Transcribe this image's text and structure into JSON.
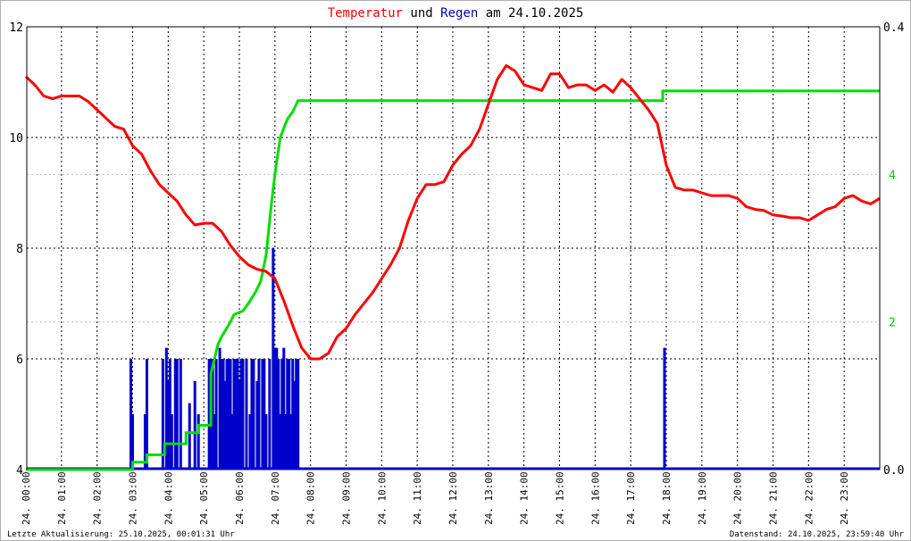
{
  "title": {
    "part1": "Temperatur",
    "part2": " und ",
    "part3": "Regen",
    "part4": " am 24.10.2025",
    "color1": "#ff0000",
    "color2": "#000000",
    "color3": "#0000aa"
  },
  "footer": {
    "left": "Letzte Aktualisierung: 25.10.2025, 00:01:31 Uhr",
    "right": "Datenstand: 24.10.2025, 23:59:40 Uhr"
  },
  "chart_data": {
    "type": "line",
    "x_unit": "hour of day",
    "xlim": [
      0,
      24
    ],
    "x_ticks": [
      0,
      1,
      2,
      3,
      4,
      5,
      6,
      7,
      8,
      9,
      10,
      11,
      12,
      13,
      14,
      15,
      16,
      17,
      18,
      19,
      20,
      21,
      22,
      23
    ],
    "x_tick_labels": [
      "24. 00:00",
      "24. 01:00",
      "24. 02:00",
      "24. 03:00",
      "24. 04:00",
      "24. 05:00",
      "24. 06:00",
      "24. 07:00",
      "24. 08:00",
      "24. 09:00",
      "24. 10:00",
      "24. 11:00",
      "24. 12:00",
      "24. 13:00",
      "24. 14:00",
      "24. 15:00",
      "24. 16:00",
      "24. 17:00",
      "24. 18:00",
      "24. 19:00",
      "24. 20:00",
      "24. 21:00",
      "24. 22:00",
      "24. 23:00"
    ],
    "y_left": {
      "ticks": [
        4,
        6,
        8,
        10,
        12
      ],
      "ylim": [
        4,
        12
      ],
      "color": "#000000"
    },
    "y_right": {
      "ticks": [
        "0.0",
        "0.4"
      ],
      "ticks_values": [
        0,
        0.4
      ],
      "ylim": [
        0,
        0.4
      ],
      "color": "#000000"
    },
    "y_right_green": {
      "ticks": [
        "2",
        "4"
      ],
      "ticks_values": [
        2,
        4
      ],
      "ylim": [
        0,
        6
      ],
      "color": "#00cc00"
    },
    "grid": true,
    "series": [
      {
        "key": "temperature",
        "color": "#ff0000",
        "axis": "left",
        "x": [
          0,
          0.25,
          0.5,
          0.75,
          1,
          1.5,
          1.75,
          2,
          2.25,
          2.5,
          2.75,
          3,
          3.25,
          3.5,
          3.75,
          4,
          4.25,
          4.5,
          4.75,
          5,
          5.25,
          5.5,
          5.75,
          6,
          6.25,
          6.5,
          6.75,
          7,
          7.25,
          7.5,
          7.75,
          8,
          8.25,
          8.5,
          8.75,
          9,
          9.25,
          9.5,
          9.75,
          10,
          10.25,
          10.5,
          10.75,
          11,
          11.25,
          11.5,
          11.75,
          12,
          12.25,
          12.5,
          12.75,
          13,
          13.25,
          13.5,
          13.75,
          14,
          14.25,
          14.5,
          14.75,
          15,
          15.25,
          15.5,
          15.75,
          16,
          16.25,
          16.5,
          16.75,
          17,
          17.25,
          17.5,
          17.75,
          18,
          18.25,
          18.5,
          18.75,
          19,
          19.25,
          19.5,
          19.75,
          20,
          20.25,
          20.5,
          20.75,
          21,
          21.25,
          21.5,
          21.75,
          22,
          22.25,
          22.5,
          22.75,
          23,
          23.25,
          23.5,
          23.75,
          24
        ],
        "y": [
          11.1,
          10.95,
          10.75,
          10.7,
          10.75,
          10.75,
          10.65,
          10.5,
          10.35,
          10.2,
          10.15,
          9.85,
          9.7,
          9.4,
          9.15,
          9.0,
          8.85,
          8.6,
          8.42,
          8.45,
          8.45,
          8.3,
          8.05,
          7.85,
          7.7,
          7.62,
          7.58,
          7.45,
          7.05,
          6.6,
          6.2,
          6.0,
          6.0,
          6.1,
          6.4,
          6.55,
          6.8,
          7.0,
          7.2,
          7.45,
          7.7,
          8.0,
          8.5,
          8.9,
          9.15,
          9.15,
          9.2,
          9.5,
          9.7,
          9.85,
          10.15,
          10.6,
          11.05,
          11.3,
          11.2,
          10.95,
          10.9,
          10.85,
          11.15,
          11.15,
          10.9,
          10.95,
          10.95,
          10.85,
          10.95,
          10.82,
          11.05,
          10.9,
          10.7,
          10.5,
          10.25,
          9.5,
          9.1,
          9.05,
          9.05,
          9.0,
          8.95,
          8.95,
          8.95,
          8.9,
          8.75,
          8.7,
          8.68,
          8.6,
          8.58,
          8.55,
          8.55,
          8.5,
          8.6,
          8.7,
          8.75,
          8.9,
          8.95,
          8.85,
          8.8,
          8.9
        ]
      },
      {
        "key": "rain_sum",
        "color": "#00dd00",
        "axis": "right_green",
        "x": [
          0,
          3.0,
          3.0,
          3.4,
          3.4,
          3.9,
          3.9,
          4.5,
          4.5,
          4.85,
          4.85,
          5.2,
          5.2,
          5.4,
          5.5,
          5.75,
          5.85,
          6.1,
          6.25,
          6.45,
          6.6,
          6.75,
          6.9,
          7.0,
          7.15,
          7.35,
          7.5,
          7.65,
          7.65,
          17.9,
          17.9,
          24
        ],
        "y": [
          0,
          0,
          0.1,
          0.1,
          0.2,
          0.2,
          0.35,
          0.35,
          0.5,
          0.5,
          0.6,
          0.6,
          1.3,
          1.7,
          1.8,
          2.0,
          2.1,
          2.15,
          2.25,
          2.4,
          2.55,
          2.9,
          3.6,
          4.0,
          4.5,
          4.75,
          4.85,
          5.0,
          5.0,
          5.0,
          5.13,
          5.13
        ]
      },
      {
        "key": "rain_rate",
        "color": "#0000cc",
        "axis": "right",
        "bars_x": [
          2.95,
          3.0,
          3.35,
          3.4,
          3.85,
          3.95,
          4.0,
          4.05,
          4.1,
          4.2,
          4.25,
          4.35,
          4.6,
          4.75,
          4.85,
          5.15,
          5.2,
          5.25,
          5.3,
          5.35,
          5.45,
          5.5,
          5.55,
          5.6,
          5.65,
          5.7,
          5.75,
          5.8,
          5.85,
          5.9,
          5.95,
          6.0,
          6.05,
          6.1,
          6.2,
          6.3,
          6.35,
          6.4,
          6.5,
          6.55,
          6.65,
          6.7,
          6.75,
          6.85,
          6.95,
          7.0,
          7.05,
          7.1,
          7.15,
          7.2,
          7.25,
          7.3,
          7.35,
          7.4,
          7.45,
          7.5,
          7.55,
          7.6,
          7.65,
          17.95
        ],
        "bars_y": [
          0.1,
          0.05,
          0.05,
          0.1,
          0.1,
          0.11,
          0.08,
          0.1,
          0.05,
          0.1,
          0.1,
          0.1,
          0.06,
          0.08,
          0.05,
          0.1,
          0.1,
          0.1,
          0.05,
          0.1,
          0.11,
          0.1,
          0.1,
          0.08,
          0.1,
          0.1,
          0.1,
          0.05,
          0.1,
          0.1,
          0.1,
          0.08,
          0.1,
          0.1,
          0.1,
          0.05,
          0.1,
          0.1,
          0.08,
          0.1,
          0.1,
          0.1,
          0.05,
          0.1,
          0.2,
          0.11,
          0.11,
          0.1,
          0.05,
          0.1,
          0.11,
          0.05,
          0.1,
          0.1,
          0.05,
          0.1,
          0.08,
          0.1,
          0.1,
          0.11
        ]
      }
    ]
  }
}
